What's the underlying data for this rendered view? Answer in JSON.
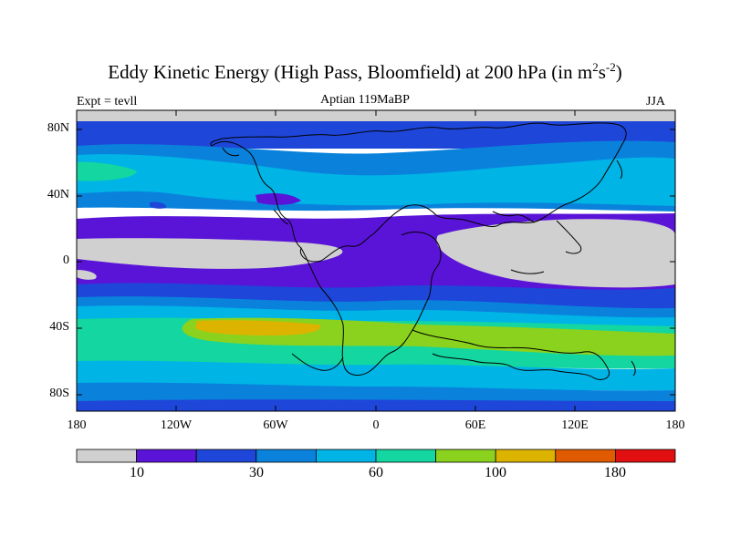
{
  "title": {
    "main": "Eddy Kinetic Energy (High Pass, Bloomfield) at 200 hPa (in m",
    "sup1": "2",
    "mid": "s",
    "sup2": "-2",
    "end": ")"
  },
  "subtitle": "Aptian   119MaBP",
  "left_label": "Expt = tevll",
  "right_label": "JJA",
  "y_ticks": [
    "80N",
    "40N",
    "0",
    "40S",
    "80S"
  ],
  "x_ticks": [
    "180",
    "120W",
    "60W",
    "0",
    "60E",
    "120E",
    "180"
  ],
  "colorbar": {
    "colors": [
      "#d0d0d0",
      "#5a14d8",
      "#1e46d8",
      "#0a82dc",
      "#00b4e6",
      "#14d6a0",
      "#8ad21e",
      "#dcb400",
      "#e05a00",
      "#e10f0f"
    ],
    "labels": [
      "10",
      "30",
      "60",
      "100",
      "180"
    ]
  },
  "colors": {
    "land_outline": "#000000"
  }
}
